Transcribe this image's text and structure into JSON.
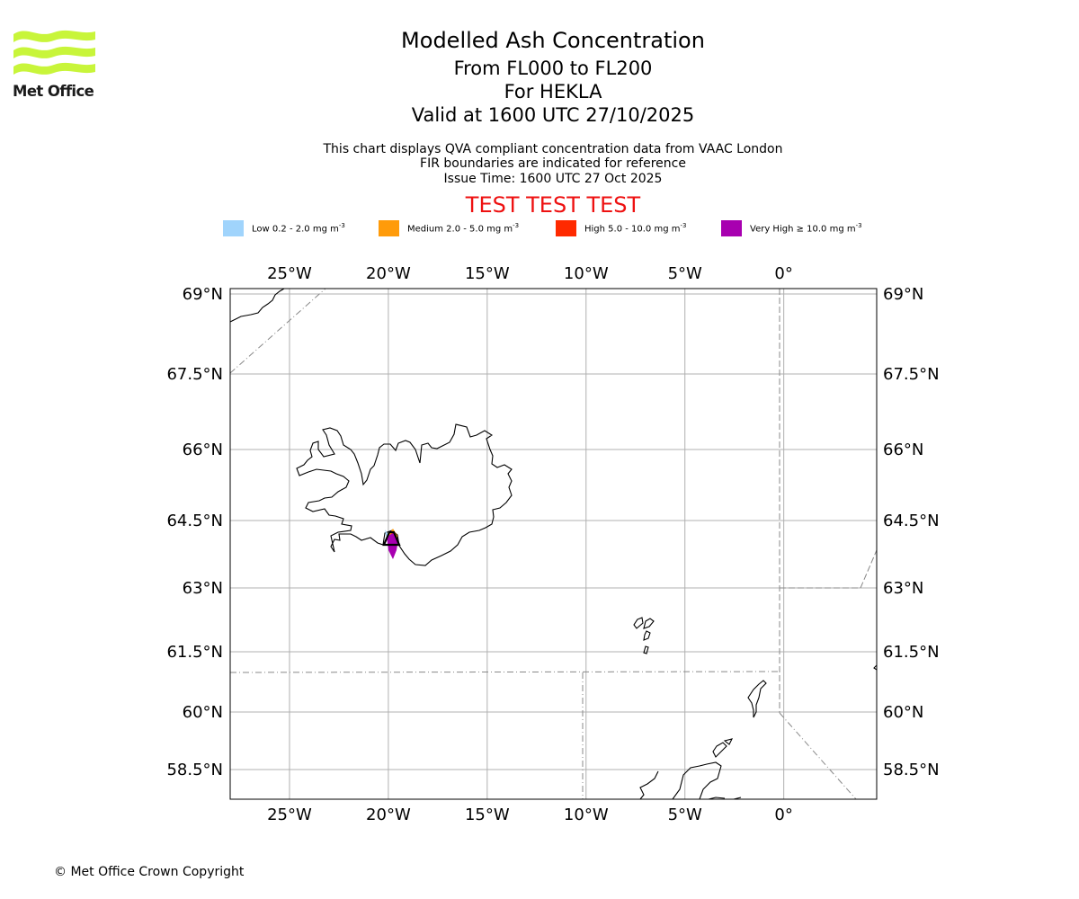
{
  "header": {
    "logo_text": "Met Office",
    "title": "Modelled Ash Concentration",
    "flight_levels": "From FL000 to FL200",
    "volcano": "For HEKLA",
    "valid_time": "Valid at 1600 UTC 27/10/2025",
    "description_1": "This chart displays QVA compliant concentration data from VAAC London",
    "description_2": "FIR boundaries are indicated for reference",
    "issue_time": "Issue Time: 1600 UTC 27 Oct 2025",
    "test_banner": "TEST TEST TEST"
  },
  "legend": [
    {
      "label": "Low 0.2 - 2.0 mg m",
      "exp": "-3",
      "color": "#a0d4fc"
    },
    {
      "label": "Medium 2.0 - 5.0 mg m",
      "exp": "-3",
      "color": "#ff9b0a"
    },
    {
      "label": "High 5.0 - 10.0 mg m",
      "exp": "-3",
      "color": "#ff2a00"
    },
    {
      "label": "Very High  ≥  10.0 mg m",
      "exp": "-3",
      "color": "#a800b0"
    }
  ],
  "map": {
    "lon_min": -28,
    "lon_max": 4.7,
    "lat_min": 57.5,
    "lat_max": 69.2,
    "lon_ticks": [
      -25,
      -20,
      -15,
      -10,
      -5,
      0
    ],
    "lon_tick_labels": [
      "25°W",
      "20°W",
      "15°W",
      "10°W",
      "5°W",
      "0°"
    ],
    "lat_ticks": [
      69,
      67.5,
      66,
      64.5,
      63,
      61.5,
      60,
      58.5
    ],
    "lat_tick_labels": [
      "69°N",
      "67.5°N",
      "66°N",
      "64.5°N",
      "63°N",
      "61.5°N",
      "60°N",
      "58.5°N"
    ],
    "volcano_marker": {
      "name": "HEKLA",
      "lon": -19.67,
      "lat": 63.99
    }
  },
  "footer": {
    "copyright": "© Met Office Crown Copyright"
  },
  "colors": {
    "gridline": "#b0b0b0",
    "fir_boundary": "#888888",
    "coastline": "#000000",
    "test_banner": "#ee1111",
    "logo_green": "#c8f53a"
  }
}
